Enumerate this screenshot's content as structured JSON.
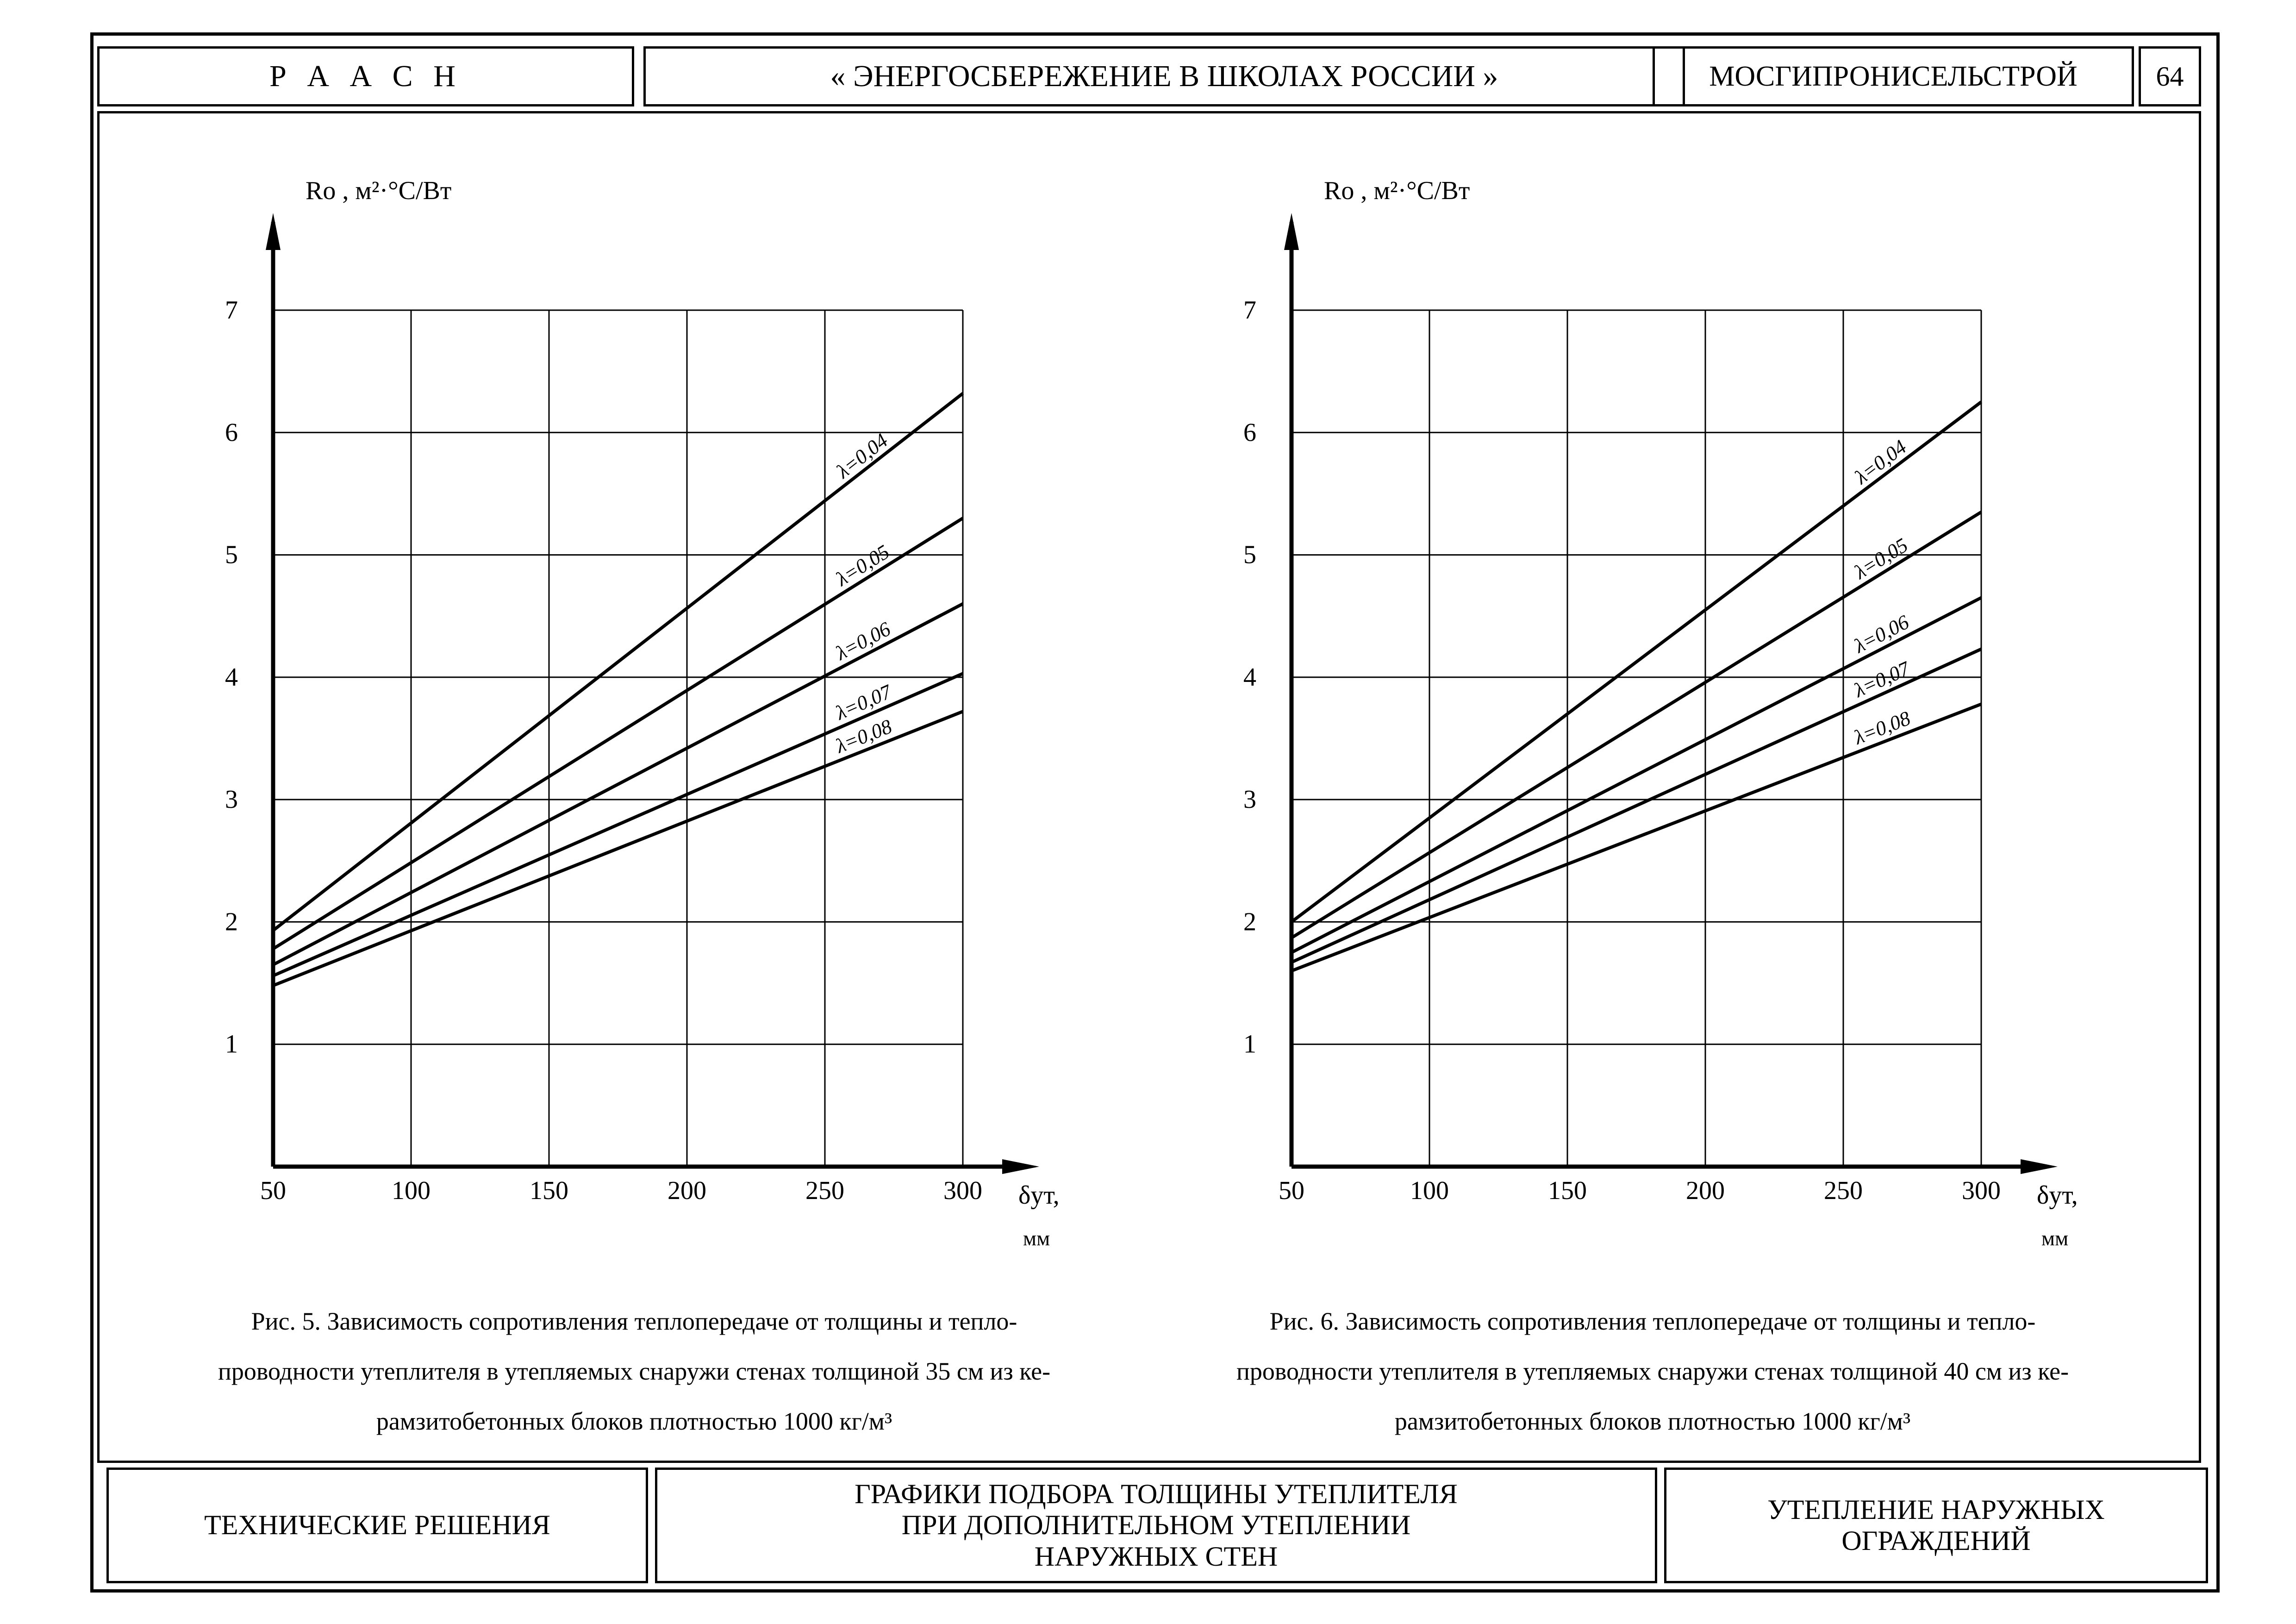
{
  "header": {
    "org": "Р А А С Н",
    "title": "« ЭНЕРГОСБЕРЕЖЕНИЕ В ШКОЛАХ РОССИИ »",
    "institute": "МОСГИПРОНИСЕЛЬСТРОЙ",
    "page_number": "64"
  },
  "footer": {
    "section": "ТЕХНИЧЕСКИЕ РЕШЕНИЯ",
    "subject_line1": "ГРАФИКИ ПОДБОРА ТОЛЩИНЫ УТЕПЛИТЕЛЯ",
    "subject_line2": "ПРИ ДОПОЛНИТЕЛЬНОМ УТЕПЛЕНИИ",
    "subject_line3": "НАРУЖНЫХ СТЕН",
    "topic_line1": "УТЕПЛЕНИЕ НАРУЖНЫХ",
    "topic_line2": "ОГРАЖДЕНИЙ"
  },
  "chart_data": [
    {
      "type": "line",
      "ylabel": "Ro , м²·°С/Вт",
      "xlabel": "δут,",
      "xunit": "мм",
      "x_ticks": [
        "50",
        "100",
        "150",
        "200",
        "250",
        "300"
      ],
      "y_ticks": [
        "1",
        "2",
        "3",
        "4",
        "5",
        "6",
        "7"
      ],
      "xlim": [
        50,
        300
      ],
      "ylim": [
        0,
        7
      ],
      "grid": true,
      "x": [
        50,
        300
      ],
      "series": [
        {
          "name": "λ=0,04",
          "values": [
            1.93,
            6.32
          ]
        },
        {
          "name": "λ=0,05",
          "values": [
            1.78,
            5.3
          ]
        },
        {
          "name": "λ=0,06",
          "values": [
            1.65,
            4.6
          ]
        },
        {
          "name": "λ=0,07",
          "values": [
            1.56,
            4.03
          ]
        },
        {
          "name": "λ=0,08",
          "values": [
            1.48,
            3.72
          ]
        }
      ],
      "caption_lines": [
        "Рис. 5.    Зависимость сопротивления теплопередаче от толщины и тепло-",
        "проводности утеплителя в утепляемых снаружи стенах толщиной 35 см из ке-",
        "рамзитобетонных блоков плотностью 1000 кг/м³"
      ]
    },
    {
      "type": "line",
      "ylabel": "Ro , м²·°С/Вт",
      "xlabel": "δут,",
      "xunit": "мм",
      "x_ticks": [
        "50",
        "100",
        "150",
        "200",
        "250",
        "300"
      ],
      "y_ticks": [
        "1",
        "2",
        "3",
        "4",
        "5",
        "6",
        "7"
      ],
      "xlim": [
        50,
        300
      ],
      "ylim": [
        0,
        7
      ],
      "grid": true,
      "x": [
        50,
        300
      ],
      "series": [
        {
          "name": "λ=0,04",
          "values": [
            2.0,
            6.25
          ]
        },
        {
          "name": "λ=0,05",
          "values": [
            1.87,
            5.35
          ]
        },
        {
          "name": "λ=0,06",
          "values": [
            1.75,
            4.65
          ]
        },
        {
          "name": "λ=0,07",
          "values": [
            1.67,
            4.23
          ]
        },
        {
          "name": "λ=0,08",
          "values": [
            1.6,
            3.78
          ]
        }
      ],
      "caption_lines": [
        "Рис. 6.    Зависимость сопротивления теплопередаче от толщины и тепло-",
        "проводности утеплителя в утепляемых снаружи стенах толщиной 40 см из ке-",
        "рамзитобетонных блоков плотностью 1000 кг/м³"
      ]
    }
  ]
}
